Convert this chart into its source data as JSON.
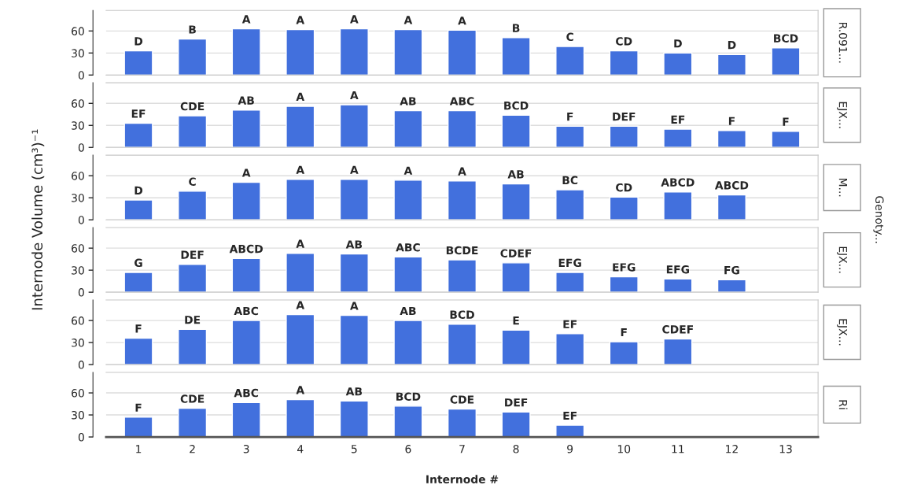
{
  "chart_data": [
    {
      "type": "bar",
      "ylabel": "R.091...",
      "categories": [
        "1",
        "2",
        "3",
        "4",
        "5",
        "6",
        "7",
        "8",
        "9",
        "10",
        "11",
        "12",
        "13"
      ],
      "values": [
        33,
        49,
        63,
        62,
        63,
        62,
        61,
        51,
        39,
        33,
        30,
        28,
        37
      ],
      "value_labels": [
        "D",
        "B",
        "A",
        "A",
        "A",
        "A",
        "A",
        "B",
        "C",
        "CD",
        "D",
        "D",
        "BCD"
      ],
      "color": "#4270dd",
      "ylim": [
        0,
        88
      ],
      "yticks": [
        0,
        30,
        60
      ],
      "grid": "y",
      "tick_labels": "y"
    },
    {
      "type": "bar",
      "ylabel": "EJX...",
      "categories": [
        "1",
        "2",
        "3",
        "4",
        "5",
        "6",
        "7",
        "8",
        "9",
        "10",
        "11",
        "12",
        "13"
      ],
      "values": [
        33,
        43,
        51,
        56,
        58,
        50,
        50,
        44,
        29,
        29,
        25,
        23,
        22
      ],
      "value_labels": [
        "EF",
        "CDE",
        "AB",
        "A",
        "A",
        "AB",
        "ABC",
        "BCD",
        "F",
        "DEF",
        "EF",
        "F",
        "F"
      ],
      "color": "#4270dd",
      "ylim": [
        0,
        88
      ],
      "yticks": [
        0,
        30,
        60
      ],
      "grid": "y",
      "tick_labels": "y"
    },
    {
      "type": "bar",
      "ylabel": "M...",
      "annotations": [
        "Internode Volume (cm³)⁻¹",
        "Genoty..."
      ],
      "categories": [
        "1",
        "2",
        "3",
        "4",
        "5",
        "6",
        "7",
        "8",
        "9",
        "10",
        "11",
        "12",
        "13"
      ],
      "values": [
        27,
        39,
        51,
        55,
        55,
        54,
        53,
        49,
        41,
        31,
        38,
        34,
        null
      ],
      "value_labels": [
        "D",
        "C",
        "A",
        "A",
        "A",
        "A",
        "A",
        "AB",
        "BC",
        "CD",
        "ABCD",
        "ABCD",
        null
      ],
      "color": "#4270dd",
      "ylim": [
        0,
        88
      ],
      "yticks": [
        0,
        30,
        60
      ],
      "grid": "y",
      "tick_labels": "y"
    },
    {
      "type": "bar",
      "ylabel": "EJX...",
      "categories": [
        "1",
        "2",
        "3",
        "4",
        "5",
        "6",
        "7",
        "8",
        "9",
        "10",
        "11",
        "12",
        "13"
      ],
      "values": [
        27,
        38,
        46,
        53,
        52,
        48,
        44,
        40,
        27,
        21,
        18,
        17,
        null
      ],
      "value_labels": [
        "G",
        "DEF",
        "ABCD",
        "A",
        "AB",
        "ABC",
        "BCDE",
        "CDEF",
        "EFG",
        "EFG",
        "EFG",
        "FG",
        null
      ],
      "color": "#4270dd",
      "ylim": [
        0,
        88
      ],
      "yticks": [
        0,
        30,
        60
      ],
      "grid": "y",
      "tick_labels": "y"
    },
    {
      "type": "bar",
      "ylabel": "EJX...",
      "categories": [
        "1",
        "2",
        "3",
        "4",
        "5",
        "6",
        "7",
        "8",
        "9",
        "10",
        "11",
        "12",
        "13"
      ],
      "values": [
        36,
        48,
        60,
        68,
        67,
        60,
        55,
        47,
        42,
        31,
        35,
        null,
        null
      ],
      "value_labels": [
        "F",
        "DE",
        "ABC",
        "A",
        "A",
        "AB",
        "BCD",
        "E",
        "EF",
        "F",
        "CDEF",
        null,
        null
      ],
      "color": "#4270dd",
      "ylim": [
        0,
        88
      ],
      "yticks": [
        0,
        30,
        60
      ],
      "grid": "y",
      "tick_labels": "y"
    },
    {
      "type": "bar",
      "ylabel": "Ri",
      "xlabel": "Internode #",
      "categories": [
        "1",
        "2",
        "3",
        "4",
        "5",
        "6",
        "7",
        "8",
        "9",
        "10",
        "11",
        "12",
        "13"
      ],
      "values": [
        27,
        39,
        47,
        51,
        49,
        42,
        38,
        34,
        16,
        null,
        null,
        null,
        null
      ],
      "value_labels": [
        "F",
        "CDE",
        "ABC",
        "A",
        "AB",
        "BCD",
        "CDE",
        "DEF",
        "EF",
        null,
        null,
        null,
        null
      ],
      "color": "#4270dd",
      "ylim": [
        0,
        88
      ],
      "yticks": [
        0,
        30,
        60
      ],
      "grid": "y"
    }
  ]
}
